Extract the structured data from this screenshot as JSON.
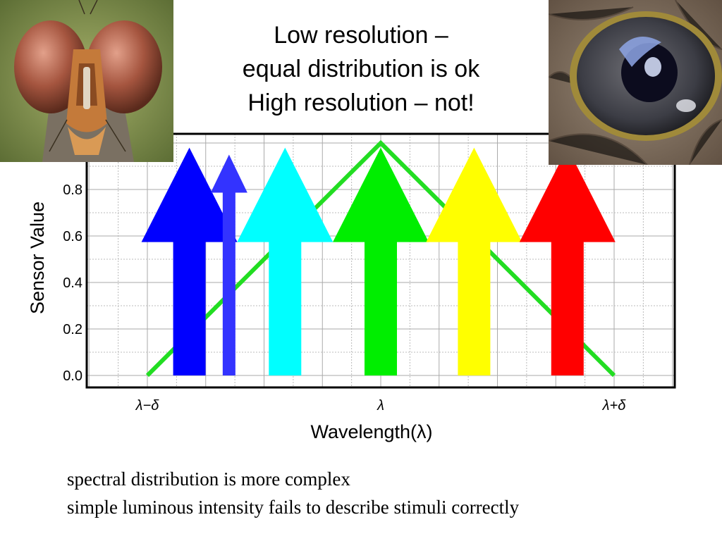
{
  "slide": {
    "title_lines": [
      "Low resolution –",
      "equal distribution is ok",
      "High resolution – not!"
    ],
    "body_lines": [
      "spectral distribution is more complex",
      "simple luminous intensity fails to describe stimuli correctly"
    ]
  },
  "photos": {
    "left": {
      "subject": "fly compound eyes close-up",
      "icon": "fly-eye-photo"
    },
    "right": {
      "subject": "bird eye close-up",
      "icon": "bird-eye-photo"
    }
  },
  "chart_data": {
    "type": "line",
    "xlabel": "Wavelength(λ)",
    "ylabel": "Sensor Value",
    "x_ticks": [
      {
        "pos": -1,
        "label": "λ−δ"
      },
      {
        "pos": 0,
        "label": "λ"
      },
      {
        "pos": 1,
        "label": "λ+δ"
      }
    ],
    "y_ticks": [
      "0.0",
      "0.2",
      "0.4",
      "0.6",
      "0.8"
    ],
    "xlim": [
      -1.2,
      1.25
    ],
    "ylim": [
      -0.05,
      1.05
    ],
    "grid": true,
    "series": [
      {
        "x": [
          -1,
          0,
          1
        ],
        "y": [
          0,
          1,
          0
        ],
        "color": "#22dd22"
      }
    ],
    "arrows": [
      {
        "x": -0.82,
        "top": 0.98,
        "width": "wide",
        "color": "#0000ff"
      },
      {
        "x": -0.65,
        "top": 0.95,
        "width": "narrow",
        "color": "#3333ff"
      },
      {
        "x": -0.41,
        "top": 0.98,
        "width": "wide",
        "color": "#00ffff"
      },
      {
        "x": 0.0,
        "top": 0.98,
        "width": "wide",
        "color": "#00ee00"
      },
      {
        "x": 0.4,
        "top": 0.98,
        "width": "wide",
        "color": "#ffff00"
      },
      {
        "x": 0.8,
        "top": 0.98,
        "width": "wide",
        "color": "#ff0000"
      }
    ]
  }
}
